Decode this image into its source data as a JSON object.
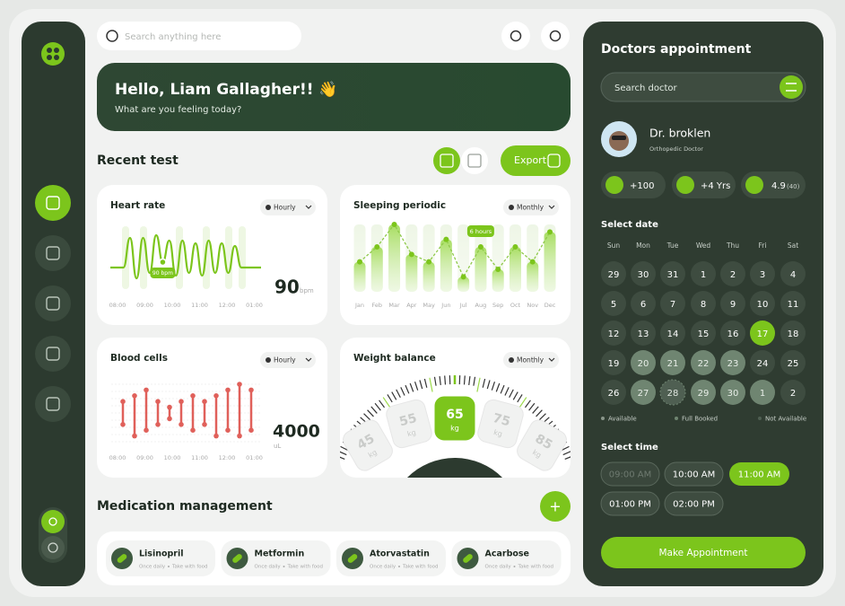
{
  "search_placeholder": "Search anything here",
  "greeting": {
    "title": "Hello, Liam Gallagher!! 👋",
    "subtitle": "What are you feeling today?"
  },
  "recent_test": {
    "title": "Recent test",
    "export": "Export"
  },
  "heart_rate": {
    "type": "line",
    "title": "Heart rate",
    "filter": "Hourly",
    "color": "#7cc51c",
    "x_labels": [
      "08:00",
      "09:00",
      "10:00",
      "11:00",
      "12:00",
      "01:00"
    ],
    "values": [
      88,
      88,
      88,
      99,
      84,
      99,
      86,
      100,
      90,
      98,
      85,
      98,
      86,
      97,
      85,
      98,
      86,
      97,
      86,
      96,
      88,
      88,
      88,
      88
    ],
    "marker": {
      "index": 8,
      "label": "90 bpm"
    },
    "reading": 90,
    "unit": "bpm"
  },
  "sleeping": {
    "type": "line",
    "title": "Sleeping periodic",
    "filter": "Monthly",
    "color": "#7cc51c",
    "categories": [
      "Jan",
      "Feb",
      "Mar",
      "Apr",
      "May",
      "Jun",
      "Jul",
      "Aug",
      "Sep",
      "Oct",
      "Nov",
      "Dec"
    ],
    "values": [
      4,
      6,
      9,
      5,
      4,
      7,
      2,
      6,
      3,
      6,
      4,
      8
    ],
    "marker": {
      "index": 7,
      "label": "6 hours"
    }
  },
  "blood_cells": {
    "type": "range",
    "title": "Blood cells",
    "filter": "Hourly",
    "color": "#e0605a",
    "x_labels": [
      "08:00",
      "09:00",
      "10:00",
      "11:00",
      "12:00",
      "01:00"
    ],
    "lows": [
      3,
      1,
      2,
      3,
      4,
      3,
      2,
      3,
      1,
      2,
      1,
      2
    ],
    "highs": [
      7,
      8,
      9,
      7,
      6,
      7,
      8,
      7,
      8,
      9,
      10,
      9
    ],
    "reading": 4000,
    "unit": "uL"
  },
  "weight": {
    "title": "Weight balance",
    "filter": "Monthly",
    "scale": [
      45,
      55,
      65,
      75,
      85
    ],
    "unit": "kg",
    "selected_index": 2
  },
  "medication": {
    "title": "Medication management",
    "add": "+",
    "items": [
      {
        "name": "Lisinopril",
        "frequency": "Once daily",
        "note": "Take with food"
      },
      {
        "name": "Metformin",
        "frequency": "Once daily",
        "note": "Take with food"
      },
      {
        "name": "Atorvastatin",
        "frequency": "Once daily",
        "note": "Take with food"
      },
      {
        "name": "Acarbose",
        "frequency": "Once daily",
        "note": "Take with food"
      }
    ]
  },
  "appointment": {
    "title": "Doctors appointment",
    "search_placeholder": "Search doctor",
    "doctor": {
      "name": "Dr. broklen",
      "specialty": "Orthopedic Doctor"
    },
    "stats": [
      "+100",
      "+4 Yrs"
    ],
    "rating": {
      "value": "4.9",
      "count": "(40)"
    },
    "select_date": "Select date",
    "weekdays": [
      "Sun",
      "Mon",
      "Tue",
      "Wed",
      "Thu",
      "Fri",
      "Sat"
    ],
    "days": [
      {
        "day": 29,
        "status": "available"
      },
      {
        "day": 30,
        "status": "available"
      },
      {
        "day": 31,
        "status": "available"
      },
      {
        "day": 1,
        "status": "available"
      },
      {
        "day": 2,
        "status": "available"
      },
      {
        "day": 3,
        "status": "available"
      },
      {
        "day": 4,
        "status": "available"
      },
      {
        "day": 5,
        "status": "available"
      },
      {
        "day": 6,
        "status": "available"
      },
      {
        "day": 7,
        "status": "available"
      },
      {
        "day": 8,
        "status": "available"
      },
      {
        "day": 9,
        "status": "available"
      },
      {
        "day": 10,
        "status": "available"
      },
      {
        "day": 11,
        "status": "available"
      },
      {
        "day": 12,
        "status": "available"
      },
      {
        "day": 13,
        "status": "available"
      },
      {
        "day": 14,
        "status": "available"
      },
      {
        "day": 15,
        "status": "available"
      },
      {
        "day": 16,
        "status": "available"
      },
      {
        "day": 17,
        "status": "selected"
      },
      {
        "day": 18,
        "status": "available"
      },
      {
        "day": 19,
        "status": "available"
      },
      {
        "day": 20,
        "status": "booked"
      },
      {
        "day": 21,
        "status": "booked"
      },
      {
        "day": 22,
        "status": "booked"
      },
      {
        "day": 23,
        "status": "booked"
      },
      {
        "day": 24,
        "status": "available"
      },
      {
        "day": 25,
        "status": "available"
      },
      {
        "day": 26,
        "status": "available"
      },
      {
        "day": 27,
        "status": "booked"
      },
      {
        "day": 28,
        "status": "unavailable"
      },
      {
        "day": 29,
        "status": "booked"
      },
      {
        "day": 30,
        "status": "booked"
      },
      {
        "day": 1,
        "status": "booked"
      },
      {
        "day": 2,
        "status": "available"
      }
    ],
    "legend": [
      "Available",
      "Full Booked",
      "Not Available"
    ],
    "select_time": "Select time",
    "times": [
      {
        "label": "09:00 AM",
        "status": "disabled"
      },
      {
        "label": "10:00 AM",
        "status": "available"
      },
      {
        "label": "11:00 AM",
        "status": "selected"
      },
      {
        "label": "01:00 PM",
        "status": "available"
      },
      {
        "label": "02:00 PM",
        "status": "available"
      }
    ],
    "button": "Make Appointment"
  }
}
